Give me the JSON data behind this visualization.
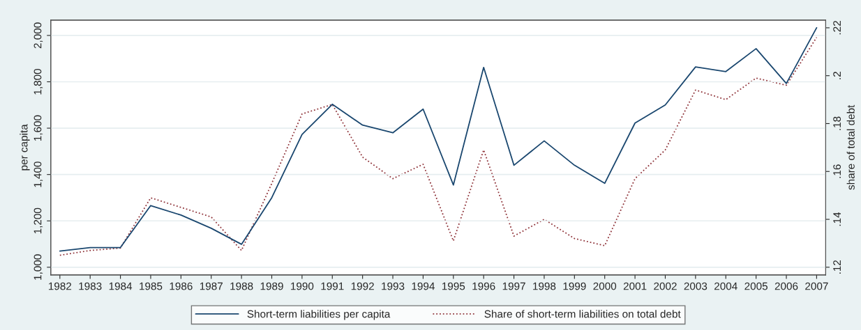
{
  "chart_data": {
    "type": "line",
    "categories": [
      "1982",
      "1983",
      "1984",
      "1985",
      "1986",
      "1987",
      "1988",
      "1989",
      "1990",
      "1991",
      "1992",
      "1993",
      "1994",
      "1995",
      "1996",
      "1997",
      "1998",
      "1999",
      "2000",
      "2001",
      "2002",
      "2003",
      "2004",
      "2005",
      "2006",
      "2007"
    ],
    "series": [
      {
        "name": "Short-term liabilities per capita",
        "color": "#1a476f",
        "line_style": "solid",
        "values": [
          1070,
          1085,
          1085,
          1266,
          1225,
          1168,
          1099,
          1300,
          1573,
          1703,
          1613,
          1580,
          1682,
          1355,
          1862,
          1440,
          1545,
          1440,
          1362,
          1622,
          1700,
          1864,
          1844,
          1943,
          1793,
          2033
        ]
      },
      {
        "name": "Share of short-term liabilities on total debt",
        "color": "#90353b",
        "line_style": "dotted",
        "axis": "y2",
        "values": [
          0.125,
          0.127,
          0.128,
          0.149,
          0.145,
          0.141,
          0.127,
          0.155,
          0.184,
          0.188,
          0.166,
          0.157,
          0.163,
          0.131,
          0.169,
          0.133,
          0.14,
          0.132,
          0.129,
          0.157,
          0.169,
          0.194,
          0.19,
          0.199,
          0.196,
          0.216
        ]
      }
    ],
    "ylabel": "per capita",
    "y2label": "share of total debt",
    "ylim": [
      967,
      2066
    ],
    "yticks": [
      {
        "value": 1000,
        "label": "1,000"
      },
      {
        "value": 1200,
        "label": "1,200"
      },
      {
        "value": 1400,
        "label": "1,400"
      },
      {
        "value": 1600,
        "label": "1,600"
      },
      {
        "value": 1800,
        "label": "1,800"
      },
      {
        "value": 2000,
        "label": "2,000"
      }
    ],
    "y2lim": [
      0.1168,
      0.2232
    ],
    "y2ticks": [
      {
        "value": 0.12,
        "label": ".12"
      },
      {
        "value": 0.14,
        "label": ".14"
      },
      {
        "value": 0.16,
        "label": ".16"
      },
      {
        "value": 0.18,
        "label": ".18"
      },
      {
        "value": 0.2,
        "label": ".2"
      },
      {
        "value": 0.22,
        "label": ".22"
      }
    ],
    "grid": "y",
    "legend": "bottom"
  }
}
